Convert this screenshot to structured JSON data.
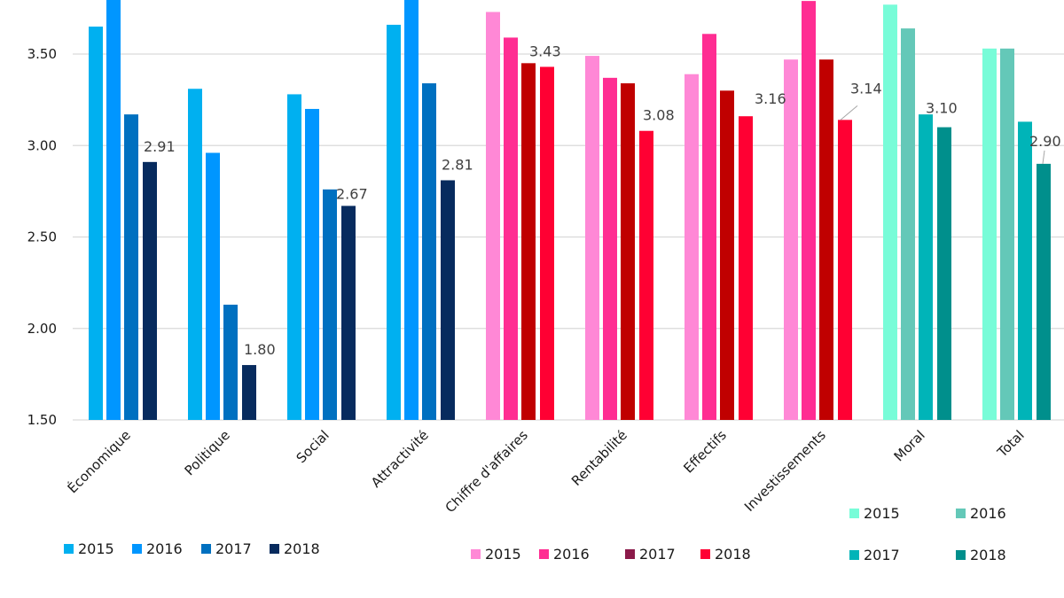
{
  "chart_data": {
    "type": "bar",
    "title": "",
    "xlabel": "",
    "ylabel": "",
    "ylim": [
      1.5,
      3.8
    ],
    "yticks": [
      "1.50",
      "2.00",
      "2.50",
      "3.00",
      "3.50"
    ],
    "ytick_values": [
      1.5,
      2.0,
      2.5,
      3.0,
      3.5
    ],
    "grid": true,
    "categories": [
      "Économique",
      "Politique",
      "Social",
      "Attractivité",
      "Chiffre d'affaires",
      "Rentabilité",
      "Effectifs",
      "Investissements",
      "Moral",
      "Total"
    ],
    "years": [
      "2015",
      "2016",
      "2017",
      "2018"
    ],
    "groups": [
      {
        "category": "Économique",
        "palette": "blue",
        "values": [
          3.65,
          3.85,
          3.17,
          2.91
        ],
        "label_2018": "2.91"
      },
      {
        "category": "Politique",
        "palette": "blue",
        "values": [
          3.31,
          2.96,
          2.13,
          1.8
        ],
        "label_2018": "1.80"
      },
      {
        "category": "Social",
        "palette": "blue",
        "values": [
          3.28,
          3.2,
          2.76,
          2.67
        ],
        "label_2018": "2.67"
      },
      {
        "category": "Attractivité",
        "palette": "blue",
        "values": [
          3.66,
          3.85,
          3.34,
          2.81
        ],
        "label_2018": "2.81"
      },
      {
        "category": "Chiffre d'affaires",
        "palette": "red",
        "values": [
          3.73,
          3.59,
          3.45,
          3.43
        ],
        "label_2018": "3.43"
      },
      {
        "category": "Rentabilité",
        "palette": "red",
        "values": [
          3.49,
          3.37,
          3.34,
          3.08
        ],
        "label_2018": "3.08"
      },
      {
        "category": "Effectifs",
        "palette": "red",
        "values": [
          3.39,
          3.61,
          3.3,
          3.16
        ],
        "label_2018": "3.16"
      },
      {
        "category": "Investissements",
        "palette": "red",
        "values": [
          3.47,
          3.79,
          3.47,
          3.14
        ],
        "label_2018": "3.14"
      },
      {
        "category": "Moral",
        "palette": "teal",
        "values": [
          3.77,
          3.64,
          3.17,
          3.1
        ],
        "label_2018": "3.10"
      },
      {
        "category": "Total",
        "palette": "teal",
        "values": [
          3.53,
          3.53,
          3.13,
          2.9
        ],
        "label_2018": "2.90"
      }
    ],
    "palettes": {
      "blue": [
        "#00b0f0",
        "#0096ff",
        "#0070c0",
        "#072b5e"
      ],
      "red": [
        "#ff88d6",
        "#ff2d92",
        "#c00000",
        "#ff0033"
      ],
      "teal": [
        "#78fcd8",
        "#64c8b8",
        "#00b4b8",
        "#008f8c"
      ]
    },
    "legends": [
      {
        "name": "legend-blue",
        "palette": "blue",
        "labels": [
          "2015",
          "2016",
          "2017",
          "2018"
        ],
        "placement": "bottom-left",
        "swatches": [
          "#00b0f0",
          "#0096ff",
          "#0070c0",
          "#072b5e"
        ]
      },
      {
        "name": "legend-red",
        "palette": "red",
        "labels": [
          "2015",
          "2016",
          "2017",
          "2018"
        ],
        "placement": "bottom-center",
        "swatches": [
          "#ff88d6",
          "#ff2d92",
          "#8b1a4a",
          "#ff0033"
        ]
      },
      {
        "name": "legend-teal",
        "palette": "teal",
        "labels": [
          "2015",
          "2016",
          "2017",
          "2018"
        ],
        "placement": "bottom-right",
        "swatches": [
          "#78fcd8",
          "#64c8b8",
          "#00b4b8",
          "#008f8c"
        ]
      }
    ],
    "gridline_color": "#d9d9d9"
  }
}
